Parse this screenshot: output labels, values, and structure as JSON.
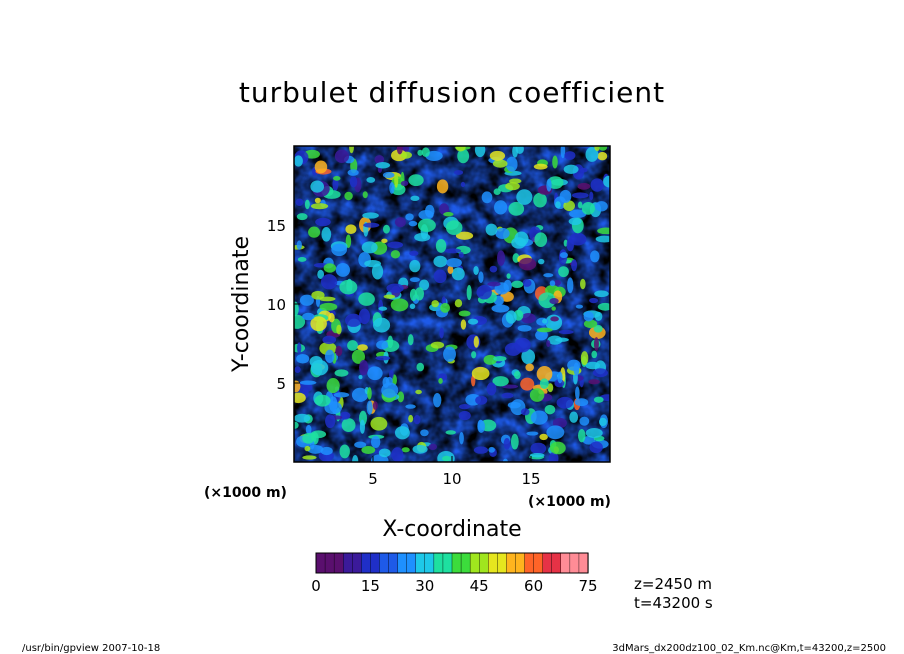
{
  "chart_data": {
    "type": "heatmap",
    "title": "turbulet diffusion coefficient",
    "xlabel": "X-coordinate",
    "ylabel": "Y-coordinate",
    "x_unit": "(×1000 m)",
    "y_unit": "(×1000 m)",
    "xlim": [
      0,
      20
    ],
    "ylim": [
      0,
      20
    ],
    "x_ticks": [
      5,
      10,
      15
    ],
    "y_ticks": [
      5,
      10,
      15
    ],
    "colorbar": {
      "min": 0,
      "max": 75,
      "ticks": [
        0,
        15,
        30,
        45,
        60,
        75
      ],
      "colors": [
        "#5a0f6e",
        "#3b1a9a",
        "#1f2fc8",
        "#1e5ae8",
        "#1e90ff",
        "#1ec8e8",
        "#1ee0a0",
        "#3cdc3c",
        "#a0e61e",
        "#e6e61e",
        "#ffb41e",
        "#ff6428",
        "#e63246",
        "#ff8c96"
      ]
    }
  },
  "info": {
    "z": "z=2450 m",
    "t": "t=43200 s"
  },
  "footer": {
    "left": "/usr/bin/gpview   2007-10-18",
    "right": "3dMars_dx200dz100_02_Km.nc@Km,t=43200,z=2500"
  }
}
